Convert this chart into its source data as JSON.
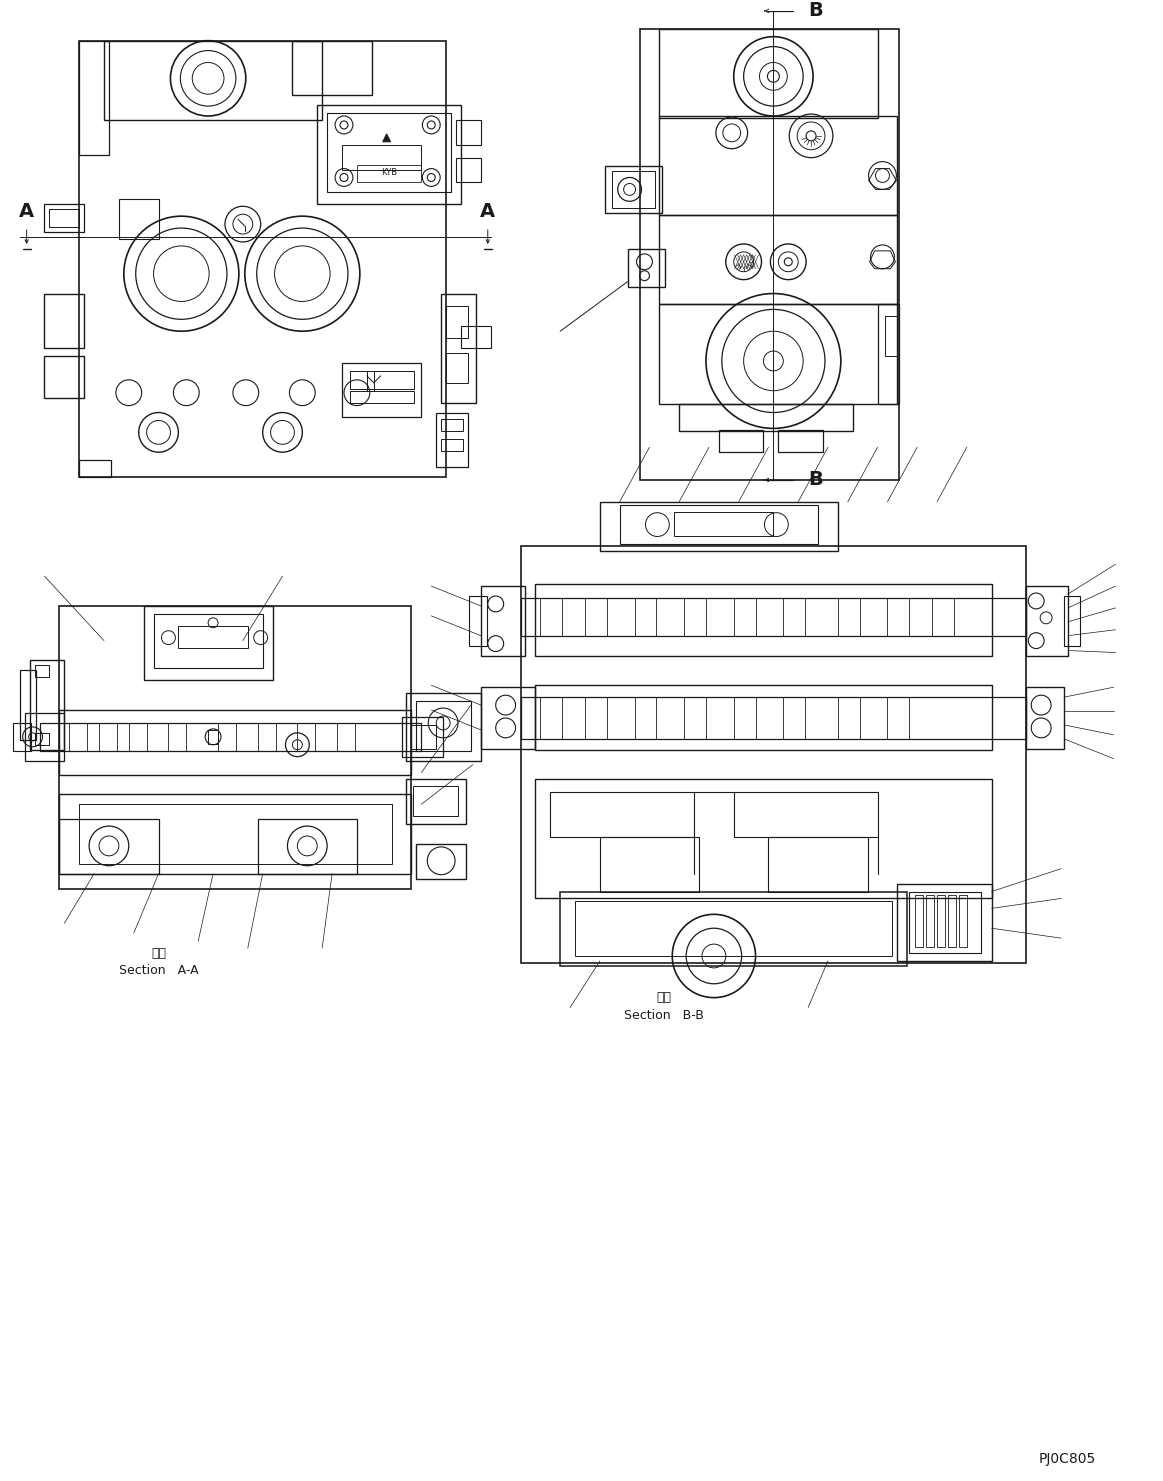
{
  "bg_color": "#ffffff",
  "line_color": "#1a1a1a",
  "figure_width": 11.63,
  "figure_height": 14.81,
  "dpi": 100,
  "section_aa_kanji": "断面",
  "section_aa_text": "Section   A-A",
  "section_bb_kanji": "断面",
  "section_bb_text": "Section   B-B",
  "drawing_number": "PJ0C805",
  "label_A": "A",
  "label_B": "B"
}
